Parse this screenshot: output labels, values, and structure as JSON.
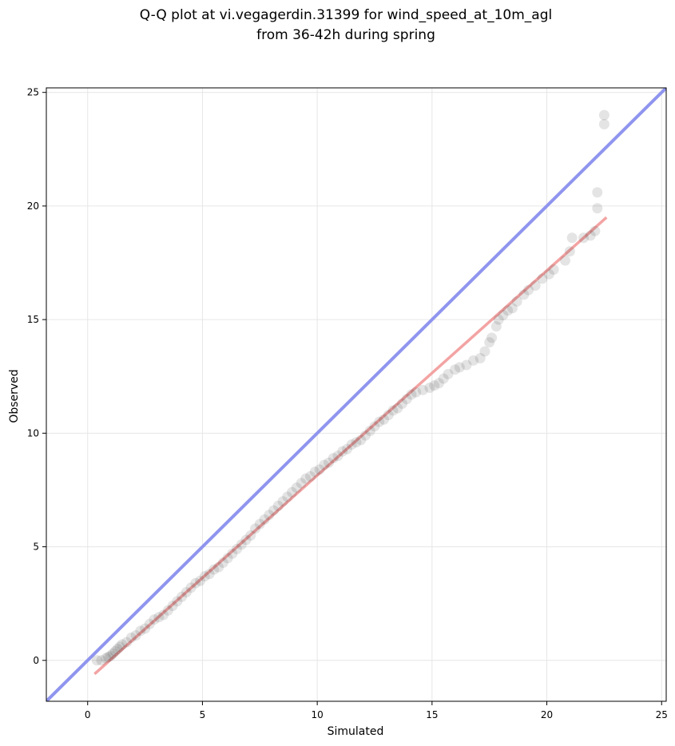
{
  "chart_data": {
    "type": "scatter",
    "title_line1": "Q-Q plot at vi.vegagerdin.31399 for wind_speed_at_10m_agl",
    "title_line2": "from 36-42h during spring",
    "xlabel": "Simulated",
    "ylabel": "Observed",
    "xlim": [
      -1.8,
      25.2
    ],
    "ylim": [
      -1.8,
      25.2
    ],
    "xticks": [
      0,
      5,
      10,
      15,
      20,
      25
    ],
    "yticks": [
      0,
      5,
      10,
      15,
      20,
      25
    ],
    "grid": true,
    "identity_line": {
      "color": "#8f95ee",
      "from": [
        -1.8,
        -1.8
      ],
      "to": [
        25.2,
        25.2
      ]
    },
    "fit_line": {
      "color": "#f08c8c",
      "from": [
        0.3,
        -0.6
      ],
      "to": [
        22.6,
        19.5
      ]
    },
    "quantile_series": {
      "color": "#222222",
      "points": [
        [
          0.4,
          0.0
        ],
        [
          0.6,
          0.0
        ],
        [
          0.8,
          0.1
        ],
        [
          0.9,
          0.15
        ],
        [
          1.0,
          0.2
        ],
        [
          1.1,
          0.3
        ],
        [
          1.2,
          0.4
        ],
        [
          1.3,
          0.5
        ],
        [
          1.4,
          0.6
        ],
        [
          1.5,
          0.7
        ],
        [
          1.7,
          0.8
        ],
        [
          1.9,
          1.0
        ],
        [
          2.1,
          1.1
        ],
        [
          2.3,
          1.3
        ],
        [
          2.5,
          1.4
        ],
        [
          2.7,
          1.6
        ],
        [
          2.9,
          1.8
        ],
        [
          3.1,
          1.9
        ],
        [
          3.3,
          2.0
        ],
        [
          3.5,
          2.2
        ],
        [
          3.7,
          2.4
        ],
        [
          3.9,
          2.6
        ],
        [
          4.1,
          2.8
        ],
        [
          4.3,
          3.0
        ],
        [
          4.5,
          3.2
        ],
        [
          4.7,
          3.4
        ],
        [
          4.9,
          3.5
        ],
        [
          5.1,
          3.7
        ],
        [
          5.3,
          3.8
        ],
        [
          5.5,
          4.0
        ],
        [
          5.7,
          4.1
        ],
        [
          5.9,
          4.3
        ],
        [
          6.1,
          4.5
        ],
        [
          6.3,
          4.7
        ],
        [
          6.5,
          4.9
        ],
        [
          6.7,
          5.1
        ],
        [
          6.9,
          5.3
        ],
        [
          7.1,
          5.5
        ],
        [
          7.3,
          5.8
        ],
        [
          7.5,
          6.0
        ],
        [
          7.7,
          6.2
        ],
        [
          7.9,
          6.4
        ],
        [
          8.1,
          6.6
        ],
        [
          8.3,
          6.8
        ],
        [
          8.5,
          7.0
        ],
        [
          8.7,
          7.2
        ],
        [
          8.9,
          7.4
        ],
        [
          9.1,
          7.6
        ],
        [
          9.3,
          7.8
        ],
        [
          9.5,
          8.0
        ],
        [
          9.7,
          8.1
        ],
        [
          9.9,
          8.3
        ],
        [
          10.1,
          8.4
        ],
        [
          10.3,
          8.6
        ],
        [
          10.5,
          8.7
        ],
        [
          10.7,
          8.9
        ],
        [
          10.9,
          9.0
        ],
        [
          11.1,
          9.2
        ],
        [
          11.3,
          9.3
        ],
        [
          11.5,
          9.5
        ],
        [
          11.7,
          9.6
        ],
        [
          11.9,
          9.7
        ],
        [
          12.1,
          9.9
        ],
        [
          12.3,
          10.1
        ],
        [
          12.5,
          10.3
        ],
        [
          12.7,
          10.5
        ],
        [
          12.9,
          10.6
        ],
        [
          13.1,
          10.8
        ],
        [
          13.3,
          11.0
        ],
        [
          13.5,
          11.1
        ],
        [
          13.7,
          11.3
        ],
        [
          13.9,
          11.5
        ],
        [
          14.1,
          11.7
        ],
        [
          14.3,
          11.8
        ],
        [
          14.6,
          11.9
        ],
        [
          14.9,
          12.0
        ],
        [
          15.1,
          12.1
        ],
        [
          15.3,
          12.2
        ],
        [
          15.5,
          12.4
        ],
        [
          15.7,
          12.6
        ],
        [
          16.0,
          12.8
        ],
        [
          16.2,
          12.9
        ],
        [
          16.5,
          13.0
        ],
        [
          16.8,
          13.2
        ],
        [
          17.1,
          13.3
        ],
        [
          17.3,
          13.6
        ],
        [
          17.5,
          14.0
        ],
        [
          17.6,
          14.2
        ],
        [
          17.8,
          14.7
        ],
        [
          17.9,
          15.0
        ],
        [
          18.1,
          15.2
        ],
        [
          18.3,
          15.4
        ],
        [
          18.5,
          15.5
        ],
        [
          18.7,
          15.8
        ],
        [
          19.0,
          16.1
        ],
        [
          19.2,
          16.3
        ],
        [
          19.5,
          16.5
        ],
        [
          19.8,
          16.8
        ],
        [
          20.1,
          17.0
        ],
        [
          20.3,
          17.2
        ],
        [
          20.8,
          17.6
        ],
        [
          21.0,
          18.0
        ],
        [
          21.1,
          18.6
        ],
        [
          21.6,
          18.6
        ],
        [
          21.9,
          18.7
        ],
        [
          22.1,
          18.9
        ],
        [
          22.2,
          19.9
        ],
        [
          22.2,
          20.6
        ],
        [
          22.5,
          23.6
        ],
        [
          22.5,
          24.0
        ]
      ]
    }
  }
}
